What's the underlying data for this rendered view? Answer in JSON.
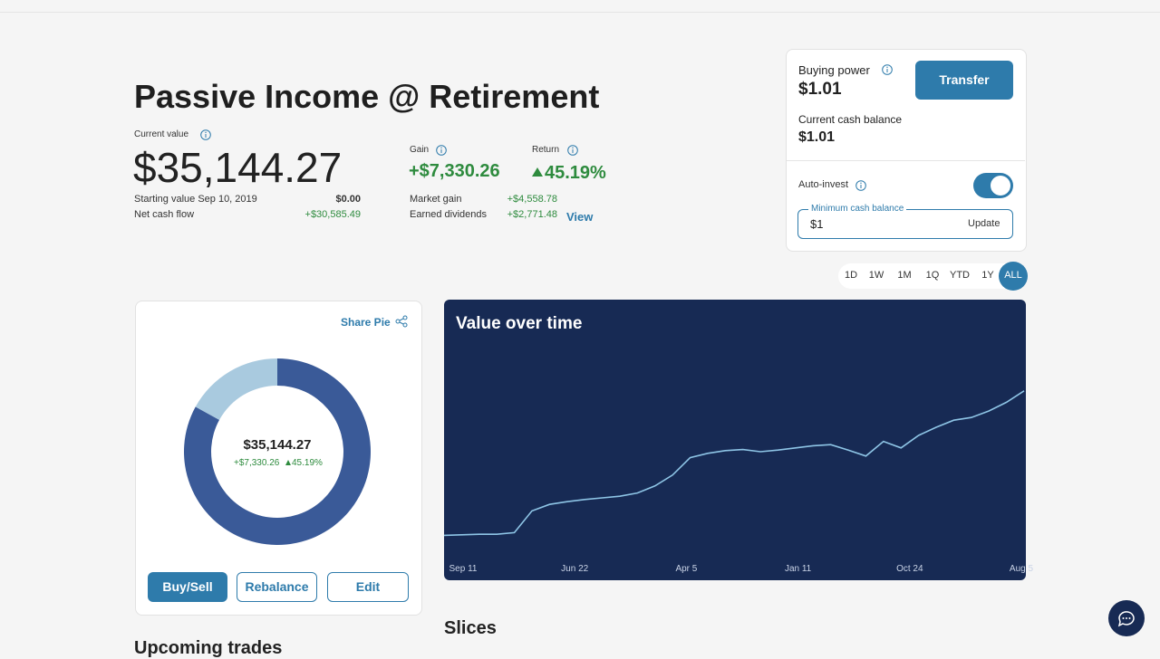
{
  "header": {
    "title": "Passive Income @ Retirement"
  },
  "summary": {
    "current_value_label": "Current value",
    "current_value": "$35,144.27",
    "starting_value_label": "Starting value Sep 10, 2019",
    "starting_value": "$0.00",
    "net_cash_flow_label": "Net cash flow",
    "net_cash_flow": "+$30,585.49",
    "gain_label": "Gain",
    "gain": "+$7,330.26",
    "return_label": "Return",
    "return": "45.19%",
    "market_gain_label": "Market gain",
    "market_gain": "+$4,558.78",
    "dividends_label": "Earned dividends",
    "dividends": "+$2,771.48",
    "view_link": "View"
  },
  "cash_panel": {
    "buying_power_label": "Buying power",
    "buying_power": "$1.01",
    "transfer_button": "Transfer",
    "cash_balance_label": "Current cash balance",
    "cash_balance": "$1.01",
    "auto_invest_label": "Auto-invest",
    "min_cash_label": "Minimum cash balance",
    "min_cash_value": "$1",
    "update_button": "Update"
  },
  "range_tabs": [
    "1D",
    "1W",
    "1M",
    "1Q",
    "YTD",
    "1Y",
    "ALL"
  ],
  "pie_card": {
    "share_link": "Share Pie",
    "center_value": "$35,144.27",
    "center_gain": "+$7,330.26",
    "center_return": "45.19%",
    "buttons": [
      "Buy/Sell",
      "Rebalance",
      "Edit"
    ],
    "chart": {
      "type": "pie",
      "values": [
        83,
        17
      ],
      "colors": [
        "#3a5a98",
        "#a9cadf"
      ]
    }
  },
  "value_chart": {
    "type": "line",
    "title": "Value over time",
    "values": [
      8100,
      8200,
      8300,
      8300,
      8600,
      12600,
      13800,
      14300,
      14700,
      15000,
      15300,
      15900,
      17200,
      19200,
      22400,
      23200,
      23700,
      23900,
      23500,
      23800,
      24200,
      24600,
      24800,
      23800,
      22700,
      25400,
      24200,
      26500,
      28000,
      29300,
      29800,
      31000,
      32600,
      34700
    ],
    "x_labels": [
      "Sep 11",
      "Jun 22",
      "Apr 5",
      "Jan 11",
      "Oct 24",
      "Aug 5"
    ],
    "ylim": [
      0,
      40000
    ],
    "color": "#8ec5e6"
  },
  "sections": {
    "upcoming_trades": "Upcoming trades",
    "slices": "Slices"
  }
}
